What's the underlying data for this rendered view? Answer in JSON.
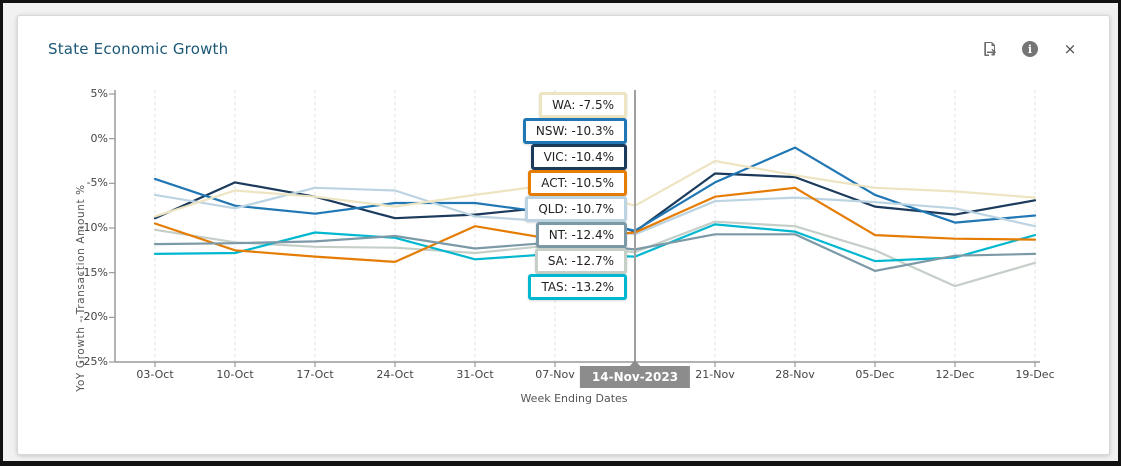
{
  "header": {
    "title": "State Economic Growth",
    "icons": [
      {
        "name": "export-icon"
      },
      {
        "name": "info-icon",
        "glyph": "i"
      },
      {
        "name": "close-icon",
        "glyph": "×"
      }
    ]
  },
  "colors": {
    "title": "#1c5876",
    "axis": "#9a9a9a",
    "gridline": "#e2e2e2",
    "crosshair": "#a0a0a0",
    "badge_bg": "#8c8c8c",
    "badge_text": "#ffffff"
  },
  "chart_data": {
    "type": "line",
    "title": "State Economic Growth",
    "xlabel": "Week Ending Dates",
    "ylabel": "YoY Growth - Transaction Amount %",
    "x_categories": [
      "03-Oct",
      "10-Oct",
      "17-Oct",
      "24-Oct",
      "31-Oct",
      "07-Nov",
      "14-Nov",
      "21-Nov",
      "28-Nov",
      "05-Dec",
      "12-Dec",
      "19-Dec"
    ],
    "selected_index": 6,
    "selected_x": "14-Nov-2023",
    "y_tick_labels": [
      "5%",
      "0%",
      "-5%",
      "-10%",
      "-15%",
      "-20%",
      "-25%"
    ],
    "y_tick_values": [
      5,
      0,
      -5,
      -10,
      -15,
      -20,
      -25
    ],
    "ylim": [
      -25,
      5
    ],
    "grid": "vertical-dashed",
    "legend_position": "bottom",
    "series": [
      {
        "name": "VIC",
        "color": "#1b3a5c",
        "values": [
          -8.9,
          -4.9,
          -6.5,
          -8.9,
          -8.5,
          -7.6,
          -10.4,
          -3.9,
          -4.3,
          -7.6,
          -8.5,
          -6.9
        ]
      },
      {
        "name": "NSW",
        "color": "#2077b4",
        "values": [
          -4.5,
          -7.5,
          -8.4,
          -7.2,
          -7.2,
          -8.4,
          -10.3,
          -4.9,
          -1.0,
          -6.3,
          -9.4,
          -8.6
        ]
      },
      {
        "name": "QLD",
        "color": "#bcd4e2",
        "values": [
          -6.3,
          -7.8,
          -5.5,
          -5.8,
          -8.7,
          -9.3,
          -10.7,
          -7.0,
          -6.6,
          -7.1,
          -7.8,
          -9.8
        ]
      },
      {
        "name": "SA",
        "color": "#c5cfc8",
        "values": [
          -10.2,
          -11.6,
          -12.1,
          -12.2,
          -12.8,
          -11.9,
          -12.7,
          -9.3,
          -9.8,
          -12.5,
          -16.5,
          -13.9
        ]
      },
      {
        "name": "WA",
        "color": "#ede4c2",
        "values": [
          -8.7,
          -5.8,
          -6.5,
          -7.6,
          -6.3,
          -5.1,
          -7.5,
          -2.5,
          -4.1,
          -5.5,
          -5.9,
          -6.6
        ]
      },
      {
        "name": "TAS",
        "color": "#00b7d0",
        "values": [
          -12.9,
          -12.8,
          -10.5,
          -11.1,
          -13.5,
          -12.9,
          -13.2,
          -9.6,
          -10.4,
          -13.7,
          -13.3,
          -10.8
        ]
      },
      {
        "name": "ACT",
        "color": "#e57c04",
        "values": [
          -9.5,
          -12.5,
          -13.2,
          -13.8,
          -9.8,
          -11.3,
          -10.5,
          -6.5,
          -5.5,
          -10.8,
          -11.2,
          -11.3
        ]
      },
      {
        "name": "NT",
        "color": "#7b99a6",
        "values": [
          -11.8,
          -11.7,
          -11.5,
          -10.9,
          -12.3,
          -11.6,
          -12.4,
          -10.7,
          -10.7,
          -14.8,
          -13.1,
          -12.9
        ]
      }
    ],
    "tooltips": [
      {
        "label": "WA",
        "value": "-7.5%",
        "color": "#ede4c2"
      },
      {
        "label": "NSW",
        "value": "-10.3%",
        "color": "#2077b4"
      },
      {
        "label": "VIC",
        "value": "-10.4%",
        "color": "#1b3a5c"
      },
      {
        "label": "ACT",
        "value": "-10.5%",
        "color": "#e57c04"
      },
      {
        "label": "QLD",
        "value": "-10.7%",
        "color": "#bcd4e2"
      },
      {
        "label": "NT",
        "value": "-12.4%",
        "color": "#7b99a6"
      },
      {
        "label": "SA",
        "value": "-12.7%",
        "color": "#c5cfc8"
      },
      {
        "label": "TAS",
        "value": "-13.2%",
        "color": "#00b7d0"
      }
    ],
    "legend": [
      "VIC",
      "NSW",
      "QLD",
      "SA",
      "WA",
      "TAS",
      "ACT",
      "NT"
    ]
  }
}
